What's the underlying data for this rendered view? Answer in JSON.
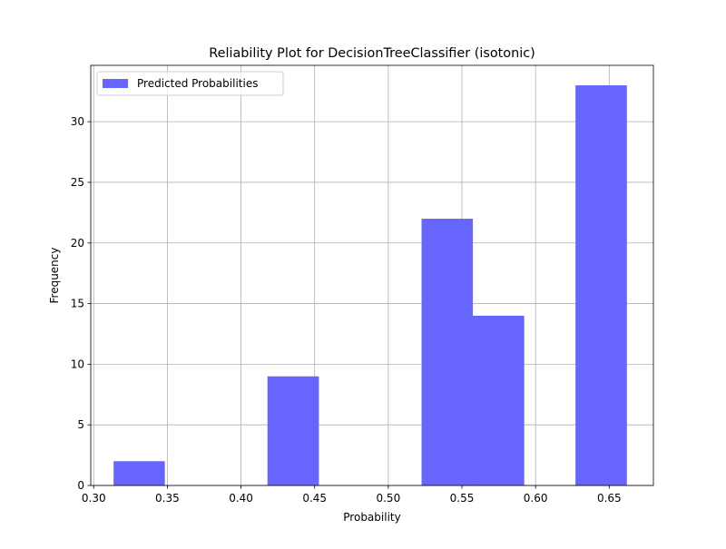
{
  "chart_data": {
    "type": "bar",
    "title": "Reliability Plot for DecisionTreeClassifier (isotonic)",
    "xlabel": "Probability",
    "ylabel": "Frequency",
    "xlim": [
      0.298,
      0.68
    ],
    "ylim": [
      0,
      34.65
    ],
    "xticks": [
      0.3,
      0.35,
      0.4,
      0.45,
      0.5,
      0.55,
      0.6,
      0.65
    ],
    "xtick_labels": [
      "0.30",
      "0.35",
      "0.40",
      "0.45",
      "0.50",
      "0.55",
      "0.60",
      "0.65"
    ],
    "yticks": [
      0,
      5,
      10,
      15,
      20,
      25,
      30
    ],
    "ytick_labels": [
      "0",
      "5",
      "10",
      "15",
      "20",
      "25",
      "30"
    ],
    "grid": true,
    "legend_position": "top-left",
    "series": [
      {
        "name": "Predicted Probabilities",
        "color": "#6666ff",
        "bins": [
          {
            "x0": 0.3135,
            "x1": 0.3483,
            "value": 2
          },
          {
            "x0": 0.3483,
            "x1": 0.3832,
            "value": 0
          },
          {
            "x0": 0.3832,
            "x1": 0.418,
            "value": 0
          },
          {
            "x0": 0.418,
            "x1": 0.4529,
            "value": 9
          },
          {
            "x0": 0.4529,
            "x1": 0.4877,
            "value": 0
          },
          {
            "x0": 0.4877,
            "x1": 0.5226,
            "value": 0
          },
          {
            "x0": 0.5226,
            "x1": 0.5574,
            "value": 22
          },
          {
            "x0": 0.5574,
            "x1": 0.5923,
            "value": 14
          },
          {
            "x0": 0.5923,
            "x1": 0.6271,
            "value": 0
          },
          {
            "x0": 0.6271,
            "x1": 0.662,
            "value": 33
          }
        ]
      }
    ]
  }
}
